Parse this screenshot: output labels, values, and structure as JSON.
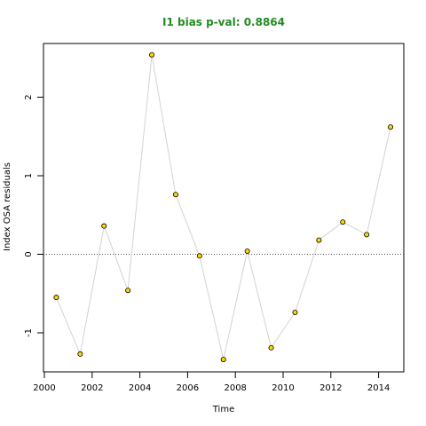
{
  "chart_data": {
    "type": "scatter",
    "title": "I1 bias p-val: 0.8864",
    "xlabel": "Time",
    "ylabel": "Index OSA residuals",
    "xlim": [
      2000,
      2015
    ],
    "ylim": [
      -1.5,
      2.65
    ],
    "xticks": [
      "2000",
      "2002",
      "2004",
      "2006",
      "2008",
      "2010",
      "2012",
      "2014"
    ],
    "yticks": [
      "-1",
      "0",
      "1",
      "2"
    ],
    "reference_line": 0,
    "grid": false,
    "series": [
      {
        "x": [
          2000.5,
          2001.5,
          2002.5,
          2003.5,
          2004.5,
          2005.5,
          2006.5,
          2007.5,
          2008.5,
          2009.5,
          2010.5,
          2011.5,
          2012.5,
          2013.5,
          2014.5
        ],
        "y": [
          -0.55,
          -1.27,
          0.36,
          -0.46,
          2.54,
          0.76,
          -0.02,
          -1.34,
          0.04,
          -1.19,
          -0.74,
          0.18,
          0.41,
          0.25,
          1.62
        ]
      }
    ]
  },
  "colors": {
    "title": "#228B22",
    "point_fill": "#FFD700",
    "point_stroke": "#000000",
    "line": "#D3D3D3",
    "reference_line": "#555555"
  }
}
